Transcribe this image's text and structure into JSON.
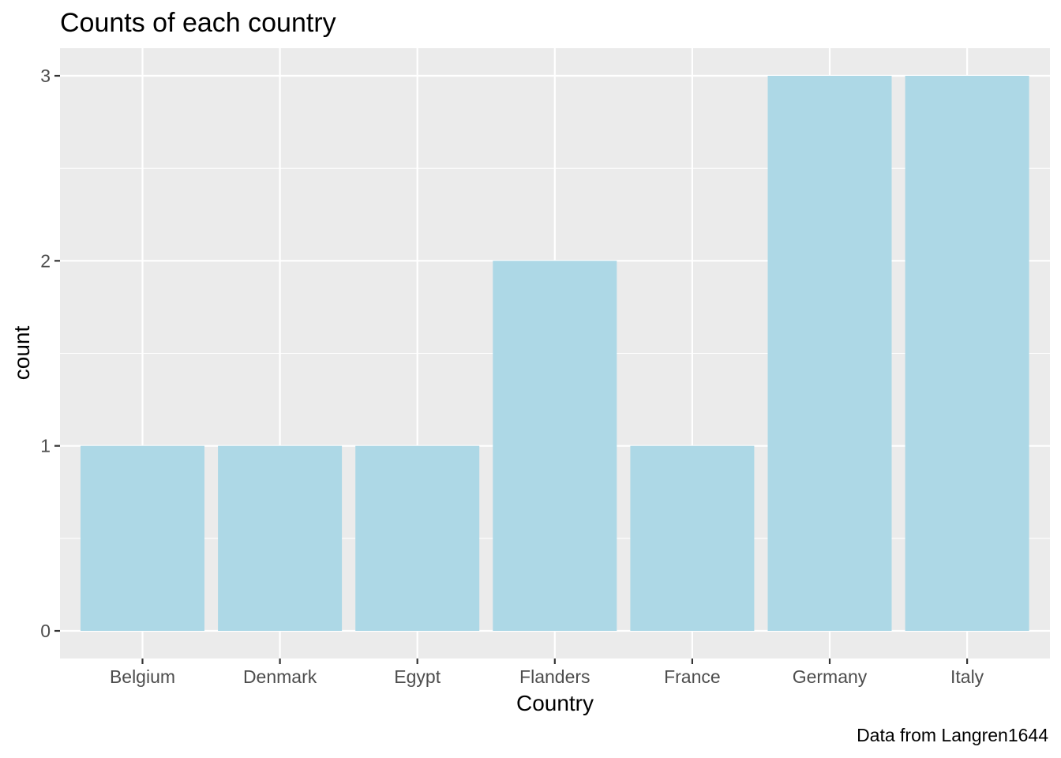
{
  "chart_data": {
    "type": "bar",
    "title": "Counts of each country",
    "xlabel": "Country",
    "ylabel": "count",
    "caption": "Data from Langren1644",
    "categories": [
      "Belgium",
      "Denmark",
      "Egypt",
      "Flanders",
      "France",
      "Germany",
      "Italy"
    ],
    "values": [
      1,
      1,
      1,
      2,
      1,
      3,
      3
    ],
    "ylim": [
      0,
      3
    ],
    "yticks": [
      "0",
      "1",
      "2",
      "3"
    ],
    "grid": true,
    "legend": "none",
    "colors": {
      "bar": "#ADD8E6",
      "panel": "#EBEBEB",
      "grid": "#FFFFFF"
    }
  }
}
